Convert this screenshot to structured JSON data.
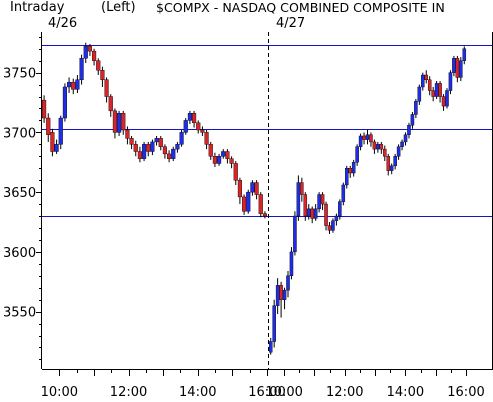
{
  "header": {
    "mode": "Intraday",
    "axis_side": "(Left)",
    "symbol_title": "$COMPX - NASDAQ COMBINED COMPOSITE IN",
    "day1": "4/26",
    "day2": "4/27"
  },
  "colors": {
    "up": "#1f2ee6",
    "down": "#d8252a",
    "wick": "#000000",
    "hline": "#1414c8",
    "axis": "#000000"
  },
  "chart_data": {
    "type": "candlestick",
    "ylim": [
      3502,
      3784
    ],
    "yticks": [
      3550,
      3600,
      3650,
      3700,
      3750
    ],
    "ytick_labels": [
      "3550",
      "3600",
      "3650",
      "3700",
      "3750"
    ],
    "xticks": [
      {
        "session": 0,
        "hour": 10,
        "label": "10:00"
      },
      {
        "session": 0,
        "hour": 12,
        "label": "12:00"
      },
      {
        "session": 0,
        "hour": 14,
        "label": "14:00"
      },
      {
        "session": 0,
        "hour": 16,
        "label": "16:00"
      },
      {
        "session": 1,
        "hour": 10,
        "label": "10:00"
      },
      {
        "session": 1,
        "hour": 12,
        "label": "12:00"
      },
      {
        "session": 1,
        "hour": 14,
        "label": "14:00"
      },
      {
        "session": 1,
        "hour": 16,
        "label": "16:00"
      }
    ],
    "reference_lines": [
      3773,
      3703,
      3630
    ],
    "day_separator": {
      "session": 1,
      "hour": 9.5
    },
    "sessions": [
      {
        "date": "4/26",
        "candles": [
          [
            3727,
            3712,
            3731,
            3708
          ],
          [
            3712,
            3698,
            3716,
            3692
          ],
          [
            3700,
            3684,
            3703,
            3680
          ],
          [
            3684,
            3690,
            3694,
            3682
          ],
          [
            3690,
            3712,
            3714,
            3686
          ],
          [
            3712,
            3738,
            3741,
            3709
          ],
          [
            3738,
            3742,
            3746,
            3733
          ],
          [
            3742,
            3736,
            3745,
            3732
          ],
          [
            3736,
            3744,
            3748,
            3733
          ],
          [
            3744,
            3762,
            3765,
            3740
          ],
          [
            3762,
            3772,
            3775,
            3758
          ],
          [
            3772,
            3768,
            3774,
            3764
          ],
          [
            3768,
            3760,
            3770,
            3756
          ],
          [
            3760,
            3752,
            3762,
            3748
          ],
          [
            3752,
            3744,
            3755,
            3738
          ],
          [
            3744,
            3730,
            3746,
            3725
          ],
          [
            3730,
            3718,
            3732,
            3713
          ],
          [
            3718,
            3700,
            3720,
            3695
          ],
          [
            3700,
            3716,
            3718,
            3697
          ],
          [
            3716,
            3702,
            3718,
            3698
          ],
          [
            3702,
            3695,
            3705,
            3690
          ],
          [
            3695,
            3690,
            3697,
            3686
          ],
          [
            3690,
            3684,
            3693,
            3680
          ],
          [
            3684,
            3678,
            3688,
            3675
          ],
          [
            3678,
            3690,
            3692,
            3676
          ],
          [
            3690,
            3684,
            3692,
            3680
          ],
          [
            3684,
            3692,
            3694,
            3681
          ],
          [
            3692,
            3695,
            3697,
            3689
          ],
          [
            3695,
            3688,
            3697,
            3685
          ],
          [
            3688,
            3682,
            3690,
            3678
          ],
          [
            3682,
            3678,
            3685,
            3675
          ],
          [
            3678,
            3686,
            3688,
            3676
          ],
          [
            3686,
            3690,
            3692,
            3683
          ],
          [
            3690,
            3700,
            3702,
            3688
          ],
          [
            3700,
            3710,
            3712,
            3698
          ],
          [
            3710,
            3716,
            3718,
            3707
          ],
          [
            3716,
            3708,
            3718,
            3704
          ],
          [
            3708,
            3702,
            3710,
            3699
          ],
          [
            3702,
            3700,
            3705,
            3697
          ],
          [
            3700,
            3690,
            3702,
            3686
          ],
          [
            3690,
            3680,
            3692,
            3677
          ],
          [
            3680,
            3674,
            3683,
            3671
          ],
          [
            3674,
            3680,
            3682,
            3672
          ],
          [
            3680,
            3684,
            3686,
            3678
          ],
          [
            3684,
            3678,
            3686,
            3674
          ],
          [
            3678,
            3674,
            3680,
            3670
          ],
          [
            3674,
            3660,
            3676,
            3656
          ],
          [
            3660,
            3646,
            3662,
            3640
          ],
          [
            3646,
            3634,
            3648,
            3631
          ],
          [
            3634,
            3650,
            3652,
            3632
          ],
          [
            3650,
            3658,
            3660,
            3647
          ],
          [
            3658,
            3648,
            3660,
            3644
          ],
          [
            3648,
            3632,
            3650,
            3629
          ],
          [
            3632,
            3630,
            3634,
            3628
          ]
        ]
      },
      {
        "date": "4/27",
        "candles": [
          [
            3516,
            3525,
            3528,
            3514
          ],
          [
            3525,
            3555,
            3560,
            3520
          ],
          [
            3555,
            3572,
            3578,
            3548
          ],
          [
            3572,
            3560,
            3575,
            3545
          ],
          [
            3560,
            3568,
            3570,
            3552
          ],
          [
            3568,
            3580,
            3584,
            3562
          ],
          [
            3580,
            3600,
            3604,
            3577
          ],
          [
            3600,
            3630,
            3634,
            3597
          ],
          [
            3630,
            3658,
            3664,
            3626
          ],
          [
            3658,
            3648,
            3662,
            3642
          ],
          [
            3648,
            3630,
            3650,
            3626
          ],
          [
            3630,
            3636,
            3640,
            3627
          ],
          [
            3636,
            3628,
            3638,
            3624
          ],
          [
            3628,
            3636,
            3640,
            3626
          ],
          [
            3636,
            3648,
            3650,
            3633
          ],
          [
            3648,
            3640,
            3650,
            3635
          ],
          [
            3640,
            3622,
            3642,
            3618
          ],
          [
            3622,
            3618,
            3625,
            3615
          ],
          [
            3618,
            3626,
            3628,
            3616
          ],
          [
            3626,
            3630,
            3632,
            3622
          ],
          [
            3630,
            3642,
            3644,
            3627
          ],
          [
            3642,
            3656,
            3658,
            3639
          ],
          [
            3656,
            3670,
            3672,
            3653
          ],
          [
            3670,
            3666,
            3672,
            3662
          ],
          [
            3666,
            3675,
            3677,
            3663
          ],
          [
            3675,
            3688,
            3690,
            3672
          ],
          [
            3688,
            3697,
            3699,
            3685
          ],
          [
            3697,
            3694,
            3700,
            3690
          ],
          [
            3694,
            3698,
            3702,
            3690
          ],
          [
            3698,
            3692,
            3700,
            3688
          ],
          [
            3692,
            3686,
            3694,
            3682
          ],
          [
            3686,
            3690,
            3692,
            3683
          ],
          [
            3690,
            3686,
            3692,
            3682
          ],
          [
            3686,
            3680,
            3689,
            3676
          ],
          [
            3680,
            3668,
            3682,
            3664
          ],
          [
            3668,
            3672,
            3674,
            3665
          ],
          [
            3672,
            3680,
            3682,
            3669
          ],
          [
            3680,
            3688,
            3690,
            3677
          ],
          [
            3688,
            3692,
            3694,
            3685
          ],
          [
            3692,
            3698,
            3700,
            3689
          ],
          [
            3698,
            3706,
            3708,
            3695
          ],
          [
            3706,
            3715,
            3717,
            3703
          ],
          [
            3715,
            3726,
            3728,
            3712
          ],
          [
            3726,
            3738,
            3740,
            3723
          ],
          [
            3738,
            3748,
            3750,
            3735
          ],
          [
            3748,
            3744,
            3752,
            3741
          ],
          [
            3744,
            3735,
            3747,
            3731
          ],
          [
            3735,
            3730,
            3738,
            3726
          ],
          [
            3730,
            3741,
            3743,
            3728
          ],
          [
            3741,
            3730,
            3743,
            3725
          ],
          [
            3730,
            3722,
            3732,
            3718
          ],
          [
            3722,
            3735,
            3737,
            3720
          ],
          [
            3735,
            3750,
            3752,
            3732
          ],
          [
            3750,
            3762,
            3764,
            3747
          ],
          [
            3762,
            3746,
            3764,
            3742
          ],
          [
            3746,
            3760,
            3763,
            3743
          ],
          [
            3760,
            3770,
            3772,
            3757
          ]
        ]
      }
    ]
  }
}
